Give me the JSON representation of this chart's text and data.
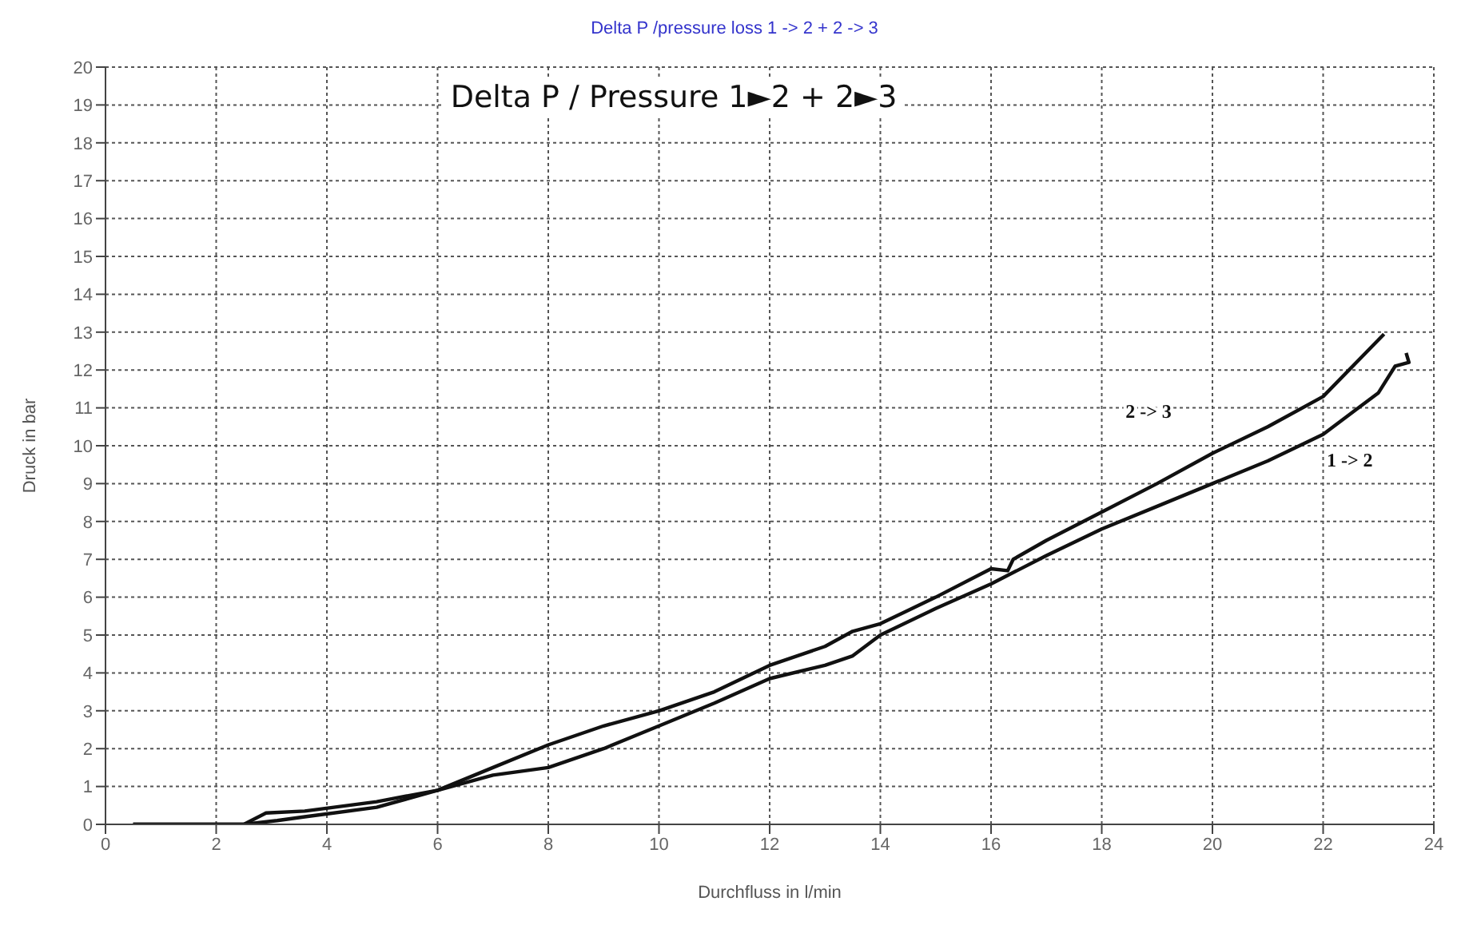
{
  "chart_data": {
    "type": "line",
    "title": "Delta P /pressure loss  1 -> 2 + 2 -> 3",
    "xlabel": "Durchfluss in l/min",
    "ylabel": "Druck in bar",
    "annotations": [
      "Delta P / Pressure 1►2 + 2►3"
    ],
    "xlim": [
      0,
      24
    ],
    "xticks": [
      0,
      2,
      4,
      6,
      8,
      10,
      12,
      14,
      16,
      18,
      20,
      22,
      24
    ],
    "ylim": [
      0,
      20
    ],
    "yticks": [
      0,
      1,
      2,
      3,
      4,
      5,
      6,
      7,
      8,
      9,
      10,
      11,
      12,
      13,
      14,
      15,
      16,
      17,
      18,
      19,
      20
    ],
    "grid": true,
    "marker": "none",
    "line_style": "solid",
    "series": [
      {
        "name": "2 -> 3",
        "color": "#111111",
        "x": [
          0.5,
          2.5,
          2.9,
          3.6,
          4.9,
          6,
          7,
          8,
          9,
          10,
          11,
          12,
          13,
          13.5,
          14,
          15,
          16,
          16.3,
          16.4,
          17,
          18,
          19,
          20,
          21,
          22,
          23.1
        ],
        "values": [
          0,
          0,
          0.3,
          0.35,
          0.6,
          0.9,
          1.5,
          2.1,
          2.6,
          3.0,
          3.5,
          4.2,
          4.7,
          5.1,
          5.3,
          6.0,
          6.75,
          6.7,
          7.0,
          7.5,
          8.25,
          9.0,
          9.8,
          10.5,
          11.3,
          12.95
        ]
      },
      {
        "name": "1 -> 2",
        "color": "#111111",
        "x": [
          0.5,
          2.5,
          3.1,
          3.6,
          4.9,
          6,
          7,
          8,
          9,
          10,
          11,
          12,
          13,
          13.5,
          14,
          15,
          16,
          17,
          18,
          19,
          20,
          21,
          22,
          23,
          23.3,
          23.55,
          23.5
        ],
        "values": [
          0,
          0,
          0.1,
          0.2,
          0.45,
          0.9,
          1.3,
          1.5,
          2.0,
          2.6,
          3.2,
          3.85,
          4.2,
          4.45,
          5.0,
          5.7,
          6.35,
          7.1,
          7.8,
          8.4,
          9.0,
          9.6,
          10.3,
          11.4,
          12.1,
          12.2,
          12.45
        ]
      }
    ]
  }
}
